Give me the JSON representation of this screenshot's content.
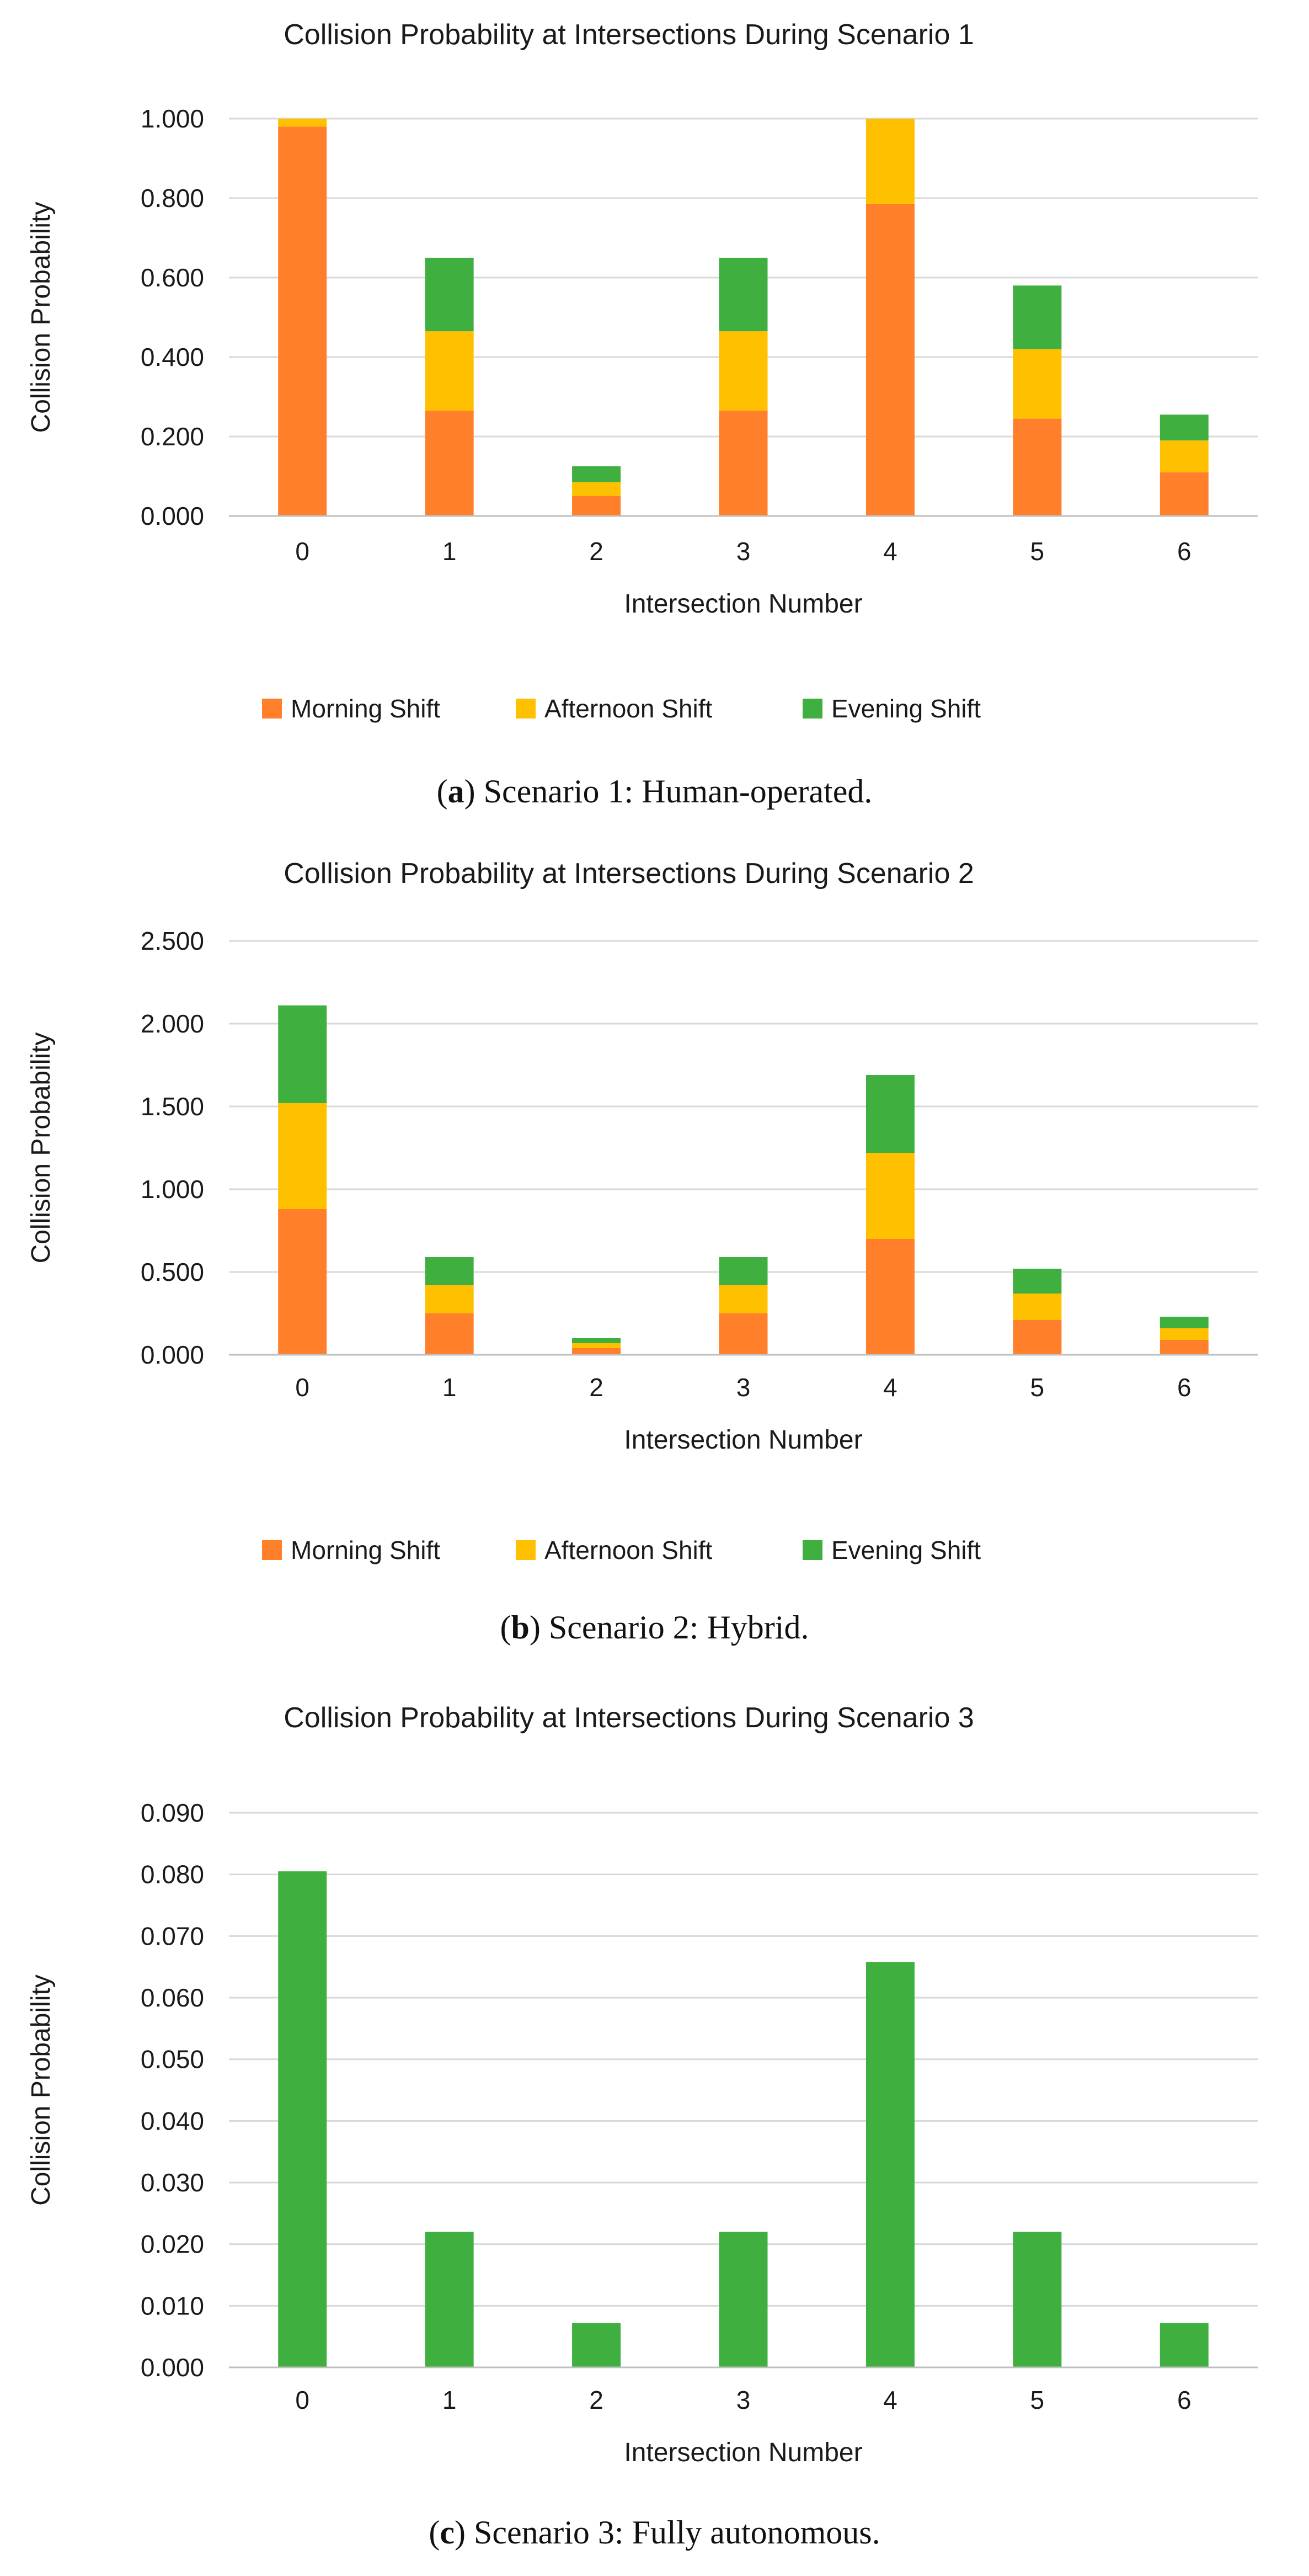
{
  "colors": {
    "morning": "#FF7F2A",
    "afternoon": "#FFC000",
    "evening": "#3FB03F",
    "grid": "#D9D9D9",
    "axis": "#BFBFBF"
  },
  "captions": [
    {
      "letter": "a",
      "open": "(",
      "close": ") Scenario 1: Human-operated."
    },
    {
      "letter": "b",
      "open": "(",
      "close": ") Scenario 2: Hybrid."
    },
    {
      "letter": "c",
      "open": "(",
      "close": ") Scenario 3: Fully autonomous."
    }
  ],
  "chart_data": [
    {
      "type": "bar",
      "stacked": true,
      "title": "Collision Probability at Intersections During Scenario 1",
      "xlabel": "Intersection Number",
      "ylabel": "Collision Probability",
      "categories": [
        "0",
        "1",
        "2",
        "3",
        "4",
        "5",
        "6"
      ],
      "ylim": [
        0,
        1.0
      ],
      "yticks": [
        "0.000",
        "0.200",
        "0.400",
        "0.600",
        "0.800",
        "1.000"
      ],
      "grid": true,
      "legend_position": "bottom",
      "series": [
        {
          "name": "Morning Shift",
          "color": "#FF7F2A",
          "values": [
            0.98,
            0.265,
            0.05,
            0.265,
            0.785,
            0.245,
            0.11
          ]
        },
        {
          "name": "Afternoon Shift",
          "color": "#FFC000",
          "values": [
            0.02,
            0.2,
            0.035,
            0.2,
            0.215,
            0.175,
            0.08
          ]
        },
        {
          "name": "Evening Shift",
          "color": "#3FB03F",
          "values": [
            0.0,
            0.185,
            0.04,
            0.185,
            0.0,
            0.16,
            0.065
          ]
        }
      ]
    },
    {
      "type": "bar",
      "stacked": true,
      "title": "Collision Probability at Intersections During Scenario 2",
      "xlabel": "Intersection Number",
      "ylabel": "Collision Probability",
      "categories": [
        "0",
        "1",
        "2",
        "3",
        "4",
        "5",
        "6"
      ],
      "ylim": [
        0,
        2.5
      ],
      "yticks": [
        "0.000",
        "0.500",
        "1.000",
        "1.500",
        "2.000",
        "2.500"
      ],
      "grid": true,
      "legend_position": "bottom",
      "series": [
        {
          "name": "Morning Shift",
          "color": "#FF7F2A",
          "values": [
            0.88,
            0.25,
            0.04,
            0.25,
            0.7,
            0.21,
            0.09
          ]
        },
        {
          "name": "Afternoon Shift",
          "color": "#FFC000",
          "values": [
            0.64,
            0.17,
            0.03,
            0.17,
            0.52,
            0.16,
            0.07
          ]
        },
        {
          "name": "Evening Shift",
          "color": "#3FB03F",
          "values": [
            0.59,
            0.17,
            0.03,
            0.17,
            0.47,
            0.15,
            0.07
          ]
        }
      ]
    },
    {
      "type": "bar",
      "stacked": false,
      "title": "Collision Probability at Intersections During Scenario 3",
      "xlabel": "Intersection Number",
      "ylabel": "Collision Probability",
      "categories": [
        "0",
        "1",
        "2",
        "3",
        "4",
        "5",
        "6"
      ],
      "ylim": [
        0,
        0.09
      ],
      "yticks": [
        "0.000",
        "0.010",
        "0.020",
        "0.030",
        "0.040",
        "0.050",
        "0.060",
        "0.070",
        "0.080",
        "0.090"
      ],
      "grid": true,
      "series": [
        {
          "color": "#3FB03F",
          "values": [
            0.0805,
            0.022,
            0.0072,
            0.022,
            0.0658,
            0.022,
            0.0072
          ]
        }
      ]
    }
  ]
}
